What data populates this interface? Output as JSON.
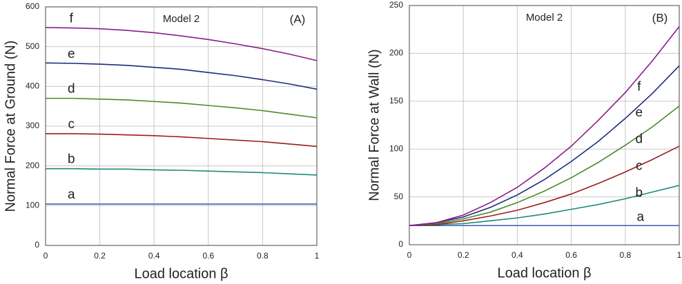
{
  "chart_data": [
    {
      "type": "line",
      "ylabel": "Normal Force at Ground (N)",
      "xlabel": "Load location β",
      "model_label": "Model 2",
      "panel_label": "(A)",
      "x": [
        0,
        0.1,
        0.2,
        0.3,
        0.4,
        0.5,
        0.6,
        0.7,
        0.8,
        0.9,
        1
      ],
      "xlim": [
        0,
        1
      ],
      "xticks": [
        0,
        0.2,
        0.4,
        0.6,
        0.8,
        1
      ],
      "ylim": [
        0,
        600
      ],
      "yticks": [
        0,
        100,
        200,
        300,
        400,
        500,
        600
      ],
      "grid": true,
      "series": [
        {
          "name": "a",
          "color": "#3a5bab",
          "values": [
            104,
            104,
            104,
            104,
            104,
            104,
            104,
            104,
            104,
            104,
            104
          ]
        },
        {
          "name": "b",
          "color": "#1a8a7a",
          "values": [
            193,
            193,
            192,
            192,
            190,
            189,
            187,
            185,
            183,
            180,
            177
          ]
        },
        {
          "name": "c",
          "color": "#9b1b1b",
          "values": [
            281,
            281,
            280,
            278,
            276,
            273,
            269,
            265,
            261,
            255,
            249
          ]
        },
        {
          "name": "d",
          "color": "#4a8a2a",
          "values": [
            370,
            370,
            368,
            366,
            362,
            358,
            352,
            346,
            339,
            330,
            321
          ]
        },
        {
          "name": "e",
          "color": "#1a2a7a",
          "values": [
            459,
            458,
            456,
            453,
            448,
            443,
            435,
            427,
            417,
            406,
            393
          ]
        },
        {
          "name": "f",
          "color": "#8a1a8a",
          "values": [
            548,
            547,
            545,
            541,
            535,
            527,
            518,
            507,
            495,
            481,
            465
          ]
        }
      ]
    },
    {
      "type": "line",
      "ylabel": "Normal Force at Wall (N)",
      "xlabel": "Load location β",
      "model_label": "Model 2",
      "panel_label": "(B)",
      "x": [
        0,
        0.1,
        0.2,
        0.3,
        0.4,
        0.5,
        0.6,
        0.7,
        0.8,
        0.9,
        1
      ],
      "xlim": [
        0,
        1
      ],
      "xticks": [
        0,
        0.2,
        0.4,
        0.6,
        0.8,
        1
      ],
      "ylim": [
        0,
        250
      ],
      "yticks": [
        0,
        50,
        100,
        150,
        200,
        250
      ],
      "grid": true,
      "series": [
        {
          "name": "a",
          "color": "#3a5bab",
          "values": [
            20,
            20,
            20,
            20,
            20,
            20,
            20,
            20,
            20,
            20,
            20
          ]
        },
        {
          "name": "b",
          "color": "#1a8a7a",
          "values": [
            20,
            21,
            22,
            25,
            28,
            32,
            37,
            42,
            48,
            55,
            62
          ]
        },
        {
          "name": "c",
          "color": "#9b1b1b",
          "values": [
            20,
            21,
            25,
            30,
            36,
            44,
            53,
            64,
            76,
            89,
            103
          ]
        },
        {
          "name": "d",
          "color": "#4a8a2a",
          "values": [
            20,
            22,
            27,
            34,
            44,
            56,
            70,
            86,
            104,
            123,
            145
          ]
        },
        {
          "name": "e",
          "color": "#1a2a7a",
          "values": [
            20,
            23,
            29,
            39,
            52,
            68,
            87,
            108,
            132,
            158,
            187
          ]
        },
        {
          "name": "f",
          "color": "#8a1a8a",
          "values": [
            20,
            23,
            31,
            44,
            60,
            80,
            103,
            130,
            159,
            192,
            228
          ]
        }
      ]
    }
  ]
}
